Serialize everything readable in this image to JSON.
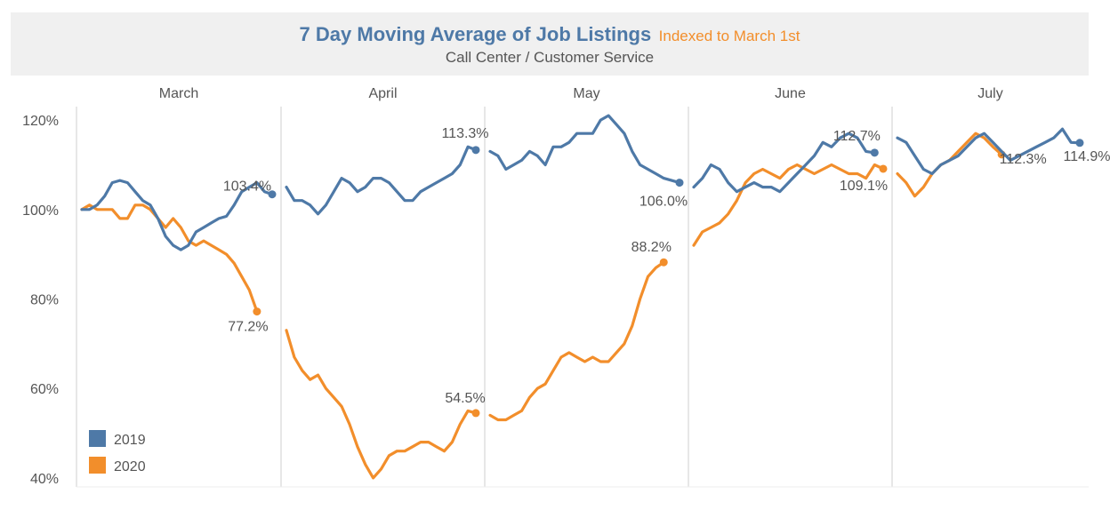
{
  "header": {
    "title": "7 Day Moving Average of Job Listings",
    "title_suffix": "Indexed to March 1st",
    "subtitle": "Call Center / Customer Service"
  },
  "colors": {
    "2019": "#4e79a7",
    "2020": "#f28e2b",
    "header_bg": "#f0f0f0"
  },
  "chart_data": {
    "type": "line",
    "title": "7 Day Moving Average of Job Listings",
    "subtitle": "Call Center / Customer Service",
    "ylim": [
      38,
      123
    ],
    "yticks": [
      40,
      60,
      80,
      100,
      120
    ],
    "yunit": "%",
    "grid": false,
    "legend": {
      "placement": "bottom-left",
      "entries": [
        "2019",
        "2020"
      ]
    },
    "panels": [
      {
        "month": "March",
        "series": [
          {
            "name": "2019",
            "end_label": "103.4%",
            "values": [
              100,
              100,
              101,
              103,
              106,
              106.5,
              106,
              104,
              102,
              101,
              98,
              94,
              92,
              91,
              92,
              95,
              96,
              97,
              98,
              98.5,
              101,
              104,
              105,
              106,
              104,
              103.4
            ]
          },
          {
            "name": "2020",
            "end_label": "77.2%",
            "values": [
              100,
              101,
              100,
              100,
              100,
              98,
              98,
              101,
              101,
              100,
              98,
              96,
              98,
              96,
              93,
              92,
              93,
              92,
              91,
              90,
              88,
              85,
              82,
              77.2
            ]
          }
        ]
      },
      {
        "month": "April",
        "series": [
          {
            "name": "2019",
            "end_label": "113.3%",
            "values": [
              105,
              102,
              102,
              101,
              99,
              101,
              104,
              107,
              106,
              104,
              105,
              107,
              107,
              106,
              104,
              102,
              102,
              104,
              105,
              106,
              107,
              108,
              110,
              114,
              113.3
            ]
          },
          {
            "name": "2020",
            "end_label": "54.5%",
            "values": [
              73,
              67,
              64,
              62,
              63,
              60,
              58,
              56,
              52,
              47,
              43,
              40,
              42,
              45,
              46,
              46,
              47,
              48,
              48,
              47,
              46,
              48,
              52,
              55,
              54.5
            ]
          }
        ]
      },
      {
        "month": "May",
        "series": [
          {
            "name": "2019",
            "end_label": "106.0%",
            "values": [
              113,
              112,
              109,
              110,
              111,
              113,
              112,
              110,
              114,
              114,
              115,
              117,
              117,
              117,
              120,
              121,
              119,
              117,
              113,
              110,
              109,
              108,
              107,
              106.5,
              106
            ]
          },
          {
            "name": "2020",
            "end_label": "88.2%",
            "values": [
              54,
              53,
              53,
              54,
              55,
              58,
              60,
              61,
              64,
              67,
              68,
              67,
              66,
              67,
              66,
              66,
              68,
              70,
              74,
              80,
              85,
              87,
              88.2
            ]
          }
        ]
      },
      {
        "month": "June",
        "series": [
          {
            "name": "2019",
            "end_label": "112.7%",
            "values": [
              105,
              107,
              110,
              109,
              106,
              104,
              105,
              106,
              105,
              105,
              104,
              106,
              108,
              110,
              112,
              115,
              114,
              116,
              117,
              116,
              113,
              112.7
            ]
          },
          {
            "name": "2020",
            "end_label": "109.1%",
            "values": [
              92,
              95,
              96,
              97,
              99,
              102,
              106,
              108,
              109,
              108,
              107,
              109,
              110,
              109,
              108,
              109,
              110,
              109,
              108,
              108,
              107,
              110,
              109.1
            ]
          }
        ]
      },
      {
        "month": "July",
        "series": [
          {
            "name": "2019",
            "end_label": "114.9%",
            "values": [
              116,
              115,
              112,
              109,
              108,
              110,
              111,
              112,
              114,
              116,
              117,
              115,
              113,
              111,
              112,
              113,
              114,
              115,
              116,
              118,
              115,
              114.9
            ]
          },
          {
            "name": "2020",
            "end_label": "112.3%",
            "values": [
              108,
              106,
              103,
              105,
              108,
              110,
              111,
              113,
              115,
              117,
              116,
              114,
              112.3
            ]
          }
        ]
      }
    ]
  }
}
